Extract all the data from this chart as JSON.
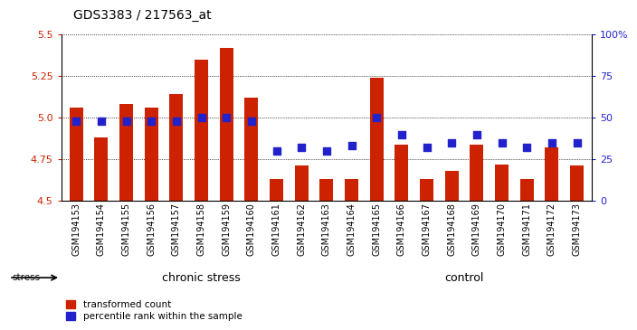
{
  "title": "GDS3383 / 217563_at",
  "samples": [
    "GSM194153",
    "GSM194154",
    "GSM194155",
    "GSM194156",
    "GSM194157",
    "GSM194158",
    "GSM194159",
    "GSM194160",
    "GSM194161",
    "GSM194162",
    "GSM194163",
    "GSM194164",
    "GSM194165",
    "GSM194166",
    "GSM194167",
    "GSM194168",
    "GSM194169",
    "GSM194170",
    "GSM194171",
    "GSM194172",
    "GSM194173"
  ],
  "transformed_count": [
    5.06,
    4.88,
    5.08,
    5.06,
    5.14,
    5.35,
    5.42,
    5.12,
    4.63,
    4.71,
    4.63,
    4.63,
    5.24,
    4.84,
    4.63,
    4.68,
    4.84,
    4.72,
    4.63,
    4.82,
    4.71
  ],
  "percentile_rank": [
    48,
    48,
    48,
    48,
    48,
    50,
    50,
    48,
    30,
    32,
    30,
    33,
    50,
    40,
    32,
    35,
    40,
    35,
    32,
    35,
    35
  ],
  "y_min": 4.5,
  "y_max": 5.5,
  "y_ticks": [
    4.5,
    4.75,
    5.0,
    5.25,
    5.5
  ],
  "right_y_ticks": [
    0,
    25,
    50,
    75,
    100
  ],
  "right_y_tick_labels": [
    "0",
    "25",
    "50",
    "75",
    "100%"
  ],
  "bar_color": "#cc2200",
  "dot_color": "#2222cc",
  "chronic_stress_count": 11,
  "control_count": 10,
  "group_labels": [
    "chronic stress",
    "control"
  ],
  "chronic_stress_color": "#ccffcc",
  "control_color": "#55dd55",
  "background_color": "#ffffff",
  "label_color_left": "#cc2200",
  "label_color_right": "#2222cc",
  "stress_label": "stress",
  "legend_items": [
    "transformed count",
    "percentile rank within the sample"
  ],
  "title_fontsize": 10,
  "tick_fontsize": 7,
  "ytick_fontsize": 8
}
